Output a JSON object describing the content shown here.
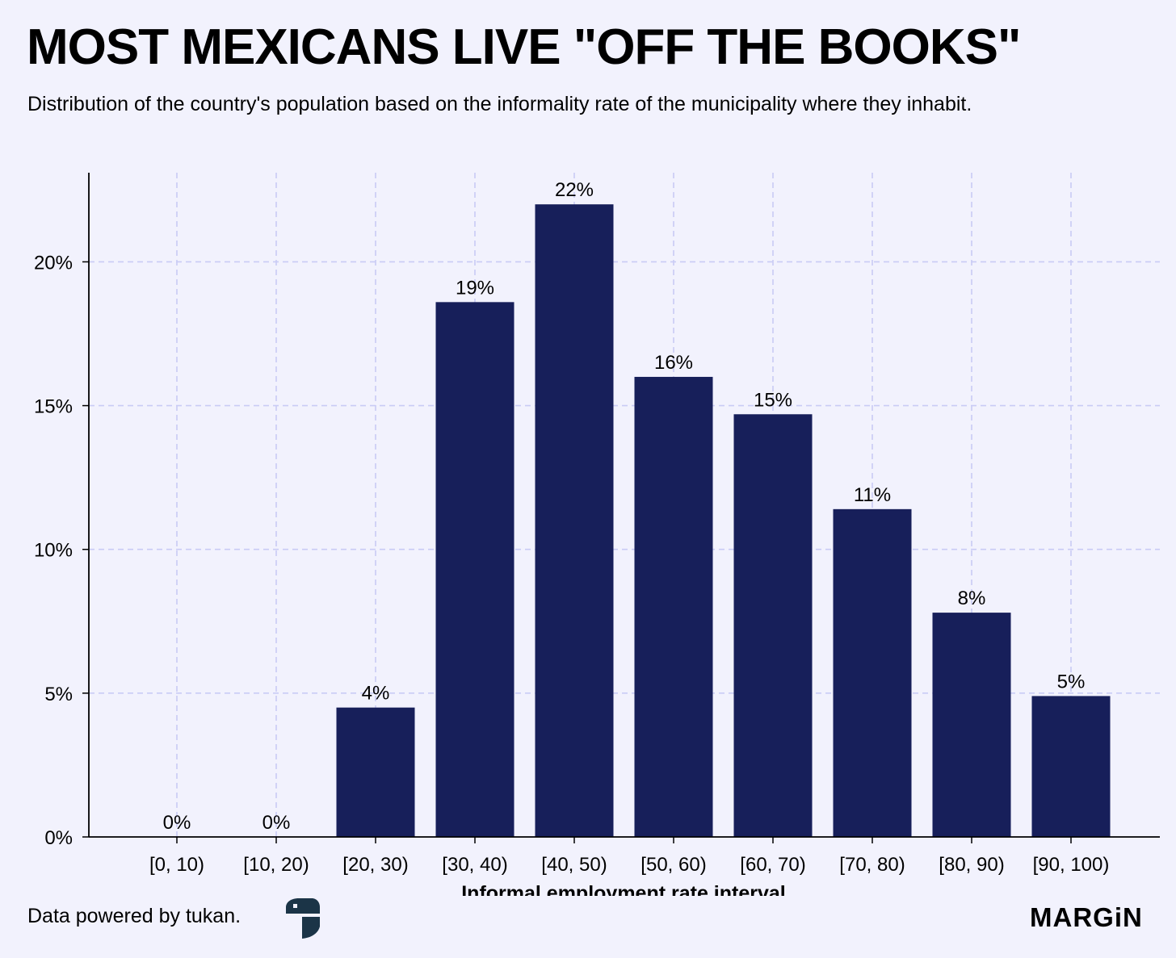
{
  "header": {
    "title": "MOST MEXICANS LIVE \"OFF THE BOOKS\"",
    "subtitle": "Distribution of the country's population based on the informality rate of the municipality where they inhabit."
  },
  "footer": {
    "credit": "Data powered by tukan.",
    "brand": "MARGiN"
  },
  "colors": {
    "background": "#f2f2fd",
    "bar": "#171f5a",
    "grid": "#c9cbf5",
    "axis": "#000000",
    "logo": "#1b3447"
  },
  "chart_data": {
    "type": "bar",
    "title": "MOST MEXICANS LIVE \"OFF THE BOOKS\"",
    "subtitle": "Distribution of the country's population based on the informality rate of the municipality where they inhabit.",
    "xlabel": "Informal employment rate interval",
    "ylabel": "",
    "categories": [
      "[0, 10)",
      "[10, 20)",
      "[20, 30)",
      "[30, 40)",
      "[40, 50)",
      "[50, 60)",
      "[60, 70)",
      "[70, 80)",
      "[80, 90)",
      "[90, 100)"
    ],
    "values": [
      0,
      0,
      4.5,
      18.6,
      22.0,
      16.0,
      14.7,
      11.4,
      7.8,
      4.9
    ],
    "data_labels": [
      "0%",
      "0%",
      "4%",
      "19%",
      "22%",
      "16%",
      "15%",
      "11%",
      "8%",
      "5%"
    ],
    "ylim": [
      0,
      23.1
    ],
    "yticks": [
      0,
      5,
      10,
      15,
      20
    ],
    "ytick_labels": [
      "0%",
      "5%",
      "10%",
      "15%",
      "20%"
    ],
    "grid": true,
    "legend": "none"
  }
}
